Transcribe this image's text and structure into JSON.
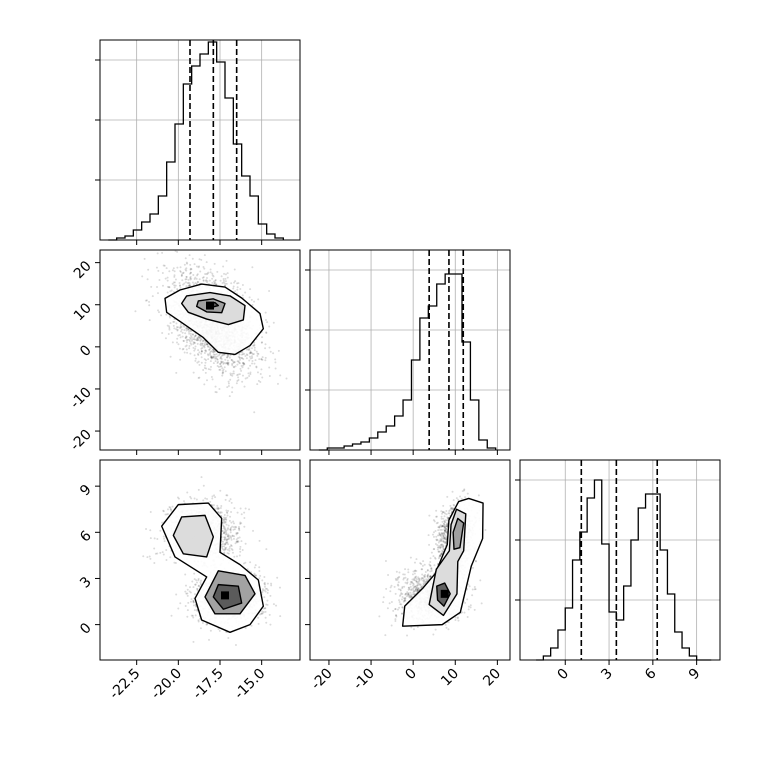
{
  "figure": {
    "style": {
      "hist_color": "#000000",
      "contour_color": "#000000",
      "grid_color": "#b0b0b0",
      "point_color": "#000000",
      "density_fill": "#4d4d4d"
    }
  },
  "chart_data": [
    {
      "type": "histogram",
      "panel": "marginal-x",
      "grid": true,
      "xlim": [
        -24.7,
        -12.7
      ],
      "ylim": [
        0,
        1.0
      ],
      "x_ticks": [
        "-22.5",
        "-20.0",
        "-17.5",
        "-15.0"
      ],
      "bin_edges": [
        -24.2,
        -23.7,
        -23.2,
        -22.7,
        -22.2,
        -21.7,
        -21.2,
        -20.7,
        -20.2,
        -19.7,
        -19.2,
        -18.7,
        -18.2,
        -17.7,
        -17.2,
        -16.7,
        -16.2,
        -15.7,
        -15.2,
        -14.7,
        -14.2,
        -13.7
      ],
      "counts": [
        0.0,
        0.01,
        0.02,
        0.05,
        0.09,
        0.13,
        0.22,
        0.39,
        0.58,
        0.78,
        0.87,
        0.93,
        0.99,
        0.89,
        0.71,
        0.48,
        0.32,
        0.22,
        0.08,
        0.03,
        0.01
      ],
      "quantile_lines": [
        -19.3,
        -17.9,
        -16.5
      ]
    },
    {
      "type": "histogram",
      "panel": "marginal-y",
      "grid": true,
      "xlim": [
        -24.5,
        23.0
      ],
      "ylim": [
        0,
        1.0
      ],
      "x_ticks": [
        "-20",
        "-10",
        "0",
        "10",
        "20"
      ],
      "bin_edges": [
        -22.4,
        -20.4,
        -18.4,
        -16.4,
        -14.4,
        -12.4,
        -10.4,
        -8.4,
        -6.4,
        -4.4,
        -2.4,
        -0.4,
        1.6,
        3.6,
        5.6,
        7.6,
        9.6,
        11.6,
        13.6,
        15.6,
        17.6,
        19.6
      ],
      "counts": [
        0.0,
        0.01,
        0.01,
        0.02,
        0.03,
        0.04,
        0.06,
        0.09,
        0.12,
        0.17,
        0.25,
        0.45,
        0.66,
        0.72,
        0.83,
        0.88,
        0.88,
        0.54,
        0.25,
        0.05,
        0.01
      ],
      "quantile_lines": [
        3.8,
        8.5,
        11.9
      ]
    },
    {
      "type": "histogram",
      "panel": "marginal-z",
      "grid": true,
      "xlim": [
        -3.1,
        10.6
      ],
      "ylim": [
        0,
        1.0
      ],
      "x_ticks": [
        "0",
        "3",
        "6",
        "9"
      ],
      "bin_edges": [
        -2.0,
        -1.5,
        -1.0,
        -0.5,
        0.0,
        0.5,
        1.0,
        1.5,
        2.0,
        2.5,
        3.0,
        3.5,
        4.0,
        4.5,
        5.0,
        5.5,
        6.0,
        6.5,
        7.0,
        7.5,
        8.0,
        8.5,
        9.0,
        9.5,
        10.0
      ],
      "counts": [
        0.0,
        0.02,
        0.06,
        0.15,
        0.26,
        0.5,
        0.64,
        0.81,
        0.9,
        0.58,
        0.24,
        0.2,
        0.37,
        0.6,
        0.76,
        0.83,
        0.83,
        0.55,
        0.33,
        0.14,
        0.06,
        0.02,
        0.0,
        0.0
      ],
      "quantile_lines": [
        1.1,
        3.5,
        6.3
      ]
    },
    {
      "type": "scatter",
      "panel": "joint-xy",
      "xlim": [
        -24.7,
        -12.7
      ],
      "ylim": [
        -24.5,
        23.0
      ],
      "y_ticks": [
        "-20",
        "-10",
        "0",
        "10",
        "20"
      ],
      "y_tick_values": [
        -20,
        -10,
        0,
        10,
        20
      ],
      "x_tick_values": [
        -22.5,
        -20.0,
        -17.5,
        -15.0
      ],
      "n_points": 2300,
      "density_peak": [
        -18.1,
        9.8
      ],
      "contour_levels": [
        [
          [
            -19.9,
            13.5
          ],
          [
            -18.6,
            14.9
          ],
          [
            -17.2,
            14.2
          ],
          [
            -16.2,
            11.6
          ],
          [
            -15.1,
            7.9
          ],
          [
            -14.9,
            4.3
          ],
          [
            -15.7,
            0.3
          ],
          [
            -16.6,
            -1.8
          ],
          [
            -17.6,
            -1.3
          ],
          [
            -18.5,
            2.2
          ],
          [
            -19.7,
            5.5
          ],
          [
            -20.7,
            8.2
          ],
          [
            -20.8,
            11.5
          ]
        ],
        [
          [
            -19.5,
            12.1
          ],
          [
            -18.1,
            12.9
          ],
          [
            -16.9,
            12.1
          ],
          [
            -16.0,
            9.8
          ],
          [
            -16.1,
            6.4
          ],
          [
            -17.0,
            5.3
          ],
          [
            -18.3,
            6.6
          ],
          [
            -19.4,
            8.2
          ],
          [
            -19.8,
            10.3
          ]
        ],
        [
          [
            -18.8,
            10.9
          ],
          [
            -17.9,
            11.4
          ],
          [
            -17.2,
            10.3
          ],
          [
            -17.4,
            8.1
          ],
          [
            -18.3,
            8.3
          ],
          [
            -18.9,
            9.6
          ]
        ],
        [
          [
            -18.2,
            10.3
          ],
          [
            -17.8,
            10.5
          ],
          [
            -17.6,
            9.8
          ],
          [
            -18.1,
            9.3
          ]
        ]
      ]
    },
    {
      "type": "scatter",
      "panel": "joint-xz",
      "xlim": [
        -24.7,
        -12.7
      ],
      "ylim": [
        -2.3,
        10.7
      ],
      "y_ticks": [
        "0",
        "3",
        "6",
        "9"
      ],
      "y_tick_values": [
        0,
        3,
        6,
        9
      ],
      "x_tick_values": [
        -22.5,
        -20.0,
        -17.5,
        -15.0
      ],
      "n_points": 2300,
      "density_peak": [
        -17.2,
        1.9
      ],
      "contour_levels": [
        [
          [
            -20.0,
            7.8
          ],
          [
            -18.2,
            7.9
          ],
          [
            -17.4,
            6.9
          ],
          [
            -17.5,
            4.7
          ],
          [
            -16.3,
            3.9
          ],
          [
            -15.2,
            2.9
          ],
          [
            -14.9,
            1.2
          ],
          [
            -15.7,
            0.0
          ],
          [
            -16.9,
            -0.5
          ],
          [
            -18.6,
            0.3
          ],
          [
            -19.0,
            1.7
          ],
          [
            -18.3,
            3.1
          ],
          [
            -20.2,
            4.4
          ],
          [
            -21.0,
            6.4
          ]
        ],
        [
          [
            -19.8,
            7.0
          ],
          [
            -18.4,
            7.1
          ],
          [
            -17.9,
            5.7
          ],
          [
            -18.3,
            4.4
          ],
          [
            -19.7,
            4.6
          ],
          [
            -20.3,
            5.8
          ]
        ],
        [
          [
            -17.6,
            3.5
          ],
          [
            -16.0,
            3.2
          ],
          [
            -15.4,
            2.0
          ],
          [
            -16.3,
            0.7
          ],
          [
            -17.8,
            0.7
          ],
          [
            -18.4,
            1.8
          ]
        ],
        [
          [
            -17.6,
            2.6
          ],
          [
            -16.4,
            2.5
          ],
          [
            -16.2,
            1.4
          ],
          [
            -17.3,
            1.0
          ],
          [
            -17.9,
            1.8
          ]
        ]
      ]
    },
    {
      "type": "scatter",
      "panel": "joint-yz",
      "xlim": [
        -24.5,
        23.0
      ],
      "ylim": [
        -2.3,
        10.7
      ],
      "x_tick_values": [
        -20,
        -10,
        0,
        10,
        20
      ],
      "n_points": 2300,
      "density_peak": [
        7.5,
        2.0
      ],
      "contour_levels": [
        [
          [
            13.2,
            8.2
          ],
          [
            16.6,
            7.9
          ],
          [
            16.5,
            5.6
          ],
          [
            13.8,
            3.8
          ],
          [
            11.2,
            0.8
          ],
          [
            6.9,
            0.0
          ],
          [
            -2.5,
            -0.1
          ],
          [
            -2.0,
            1.2
          ],
          [
            2.4,
            2.4
          ],
          [
            5.2,
            3.3
          ],
          [
            8.1,
            5.2
          ],
          [
            8.5,
            6.8
          ],
          [
            10.8,
            8.0
          ]
        ],
        [
          [
            10.3,
            7.5
          ],
          [
            12.5,
            7.2
          ],
          [
            12.0,
            4.8
          ],
          [
            10.6,
            4.1
          ],
          [
            10.4,
            2.0
          ],
          [
            7.2,
            0.6
          ],
          [
            3.8,
            1.3
          ],
          [
            5.5,
            3.6
          ],
          [
            8.6,
            4.8
          ],
          [
            9.0,
            6.5
          ]
        ],
        [
          [
            10.6,
            6.9
          ],
          [
            12.0,
            6.6
          ],
          [
            11.1,
            5.0
          ],
          [
            9.7,
            4.9
          ],
          [
            9.5,
            6.0
          ]
        ],
        [
          [
            5.6,
            2.5
          ],
          [
            7.5,
            2.7
          ],
          [
            8.8,
            2.0
          ],
          [
            7.3,
            1.2
          ],
          [
            5.8,
            1.6
          ]
        ]
      ]
    }
  ]
}
